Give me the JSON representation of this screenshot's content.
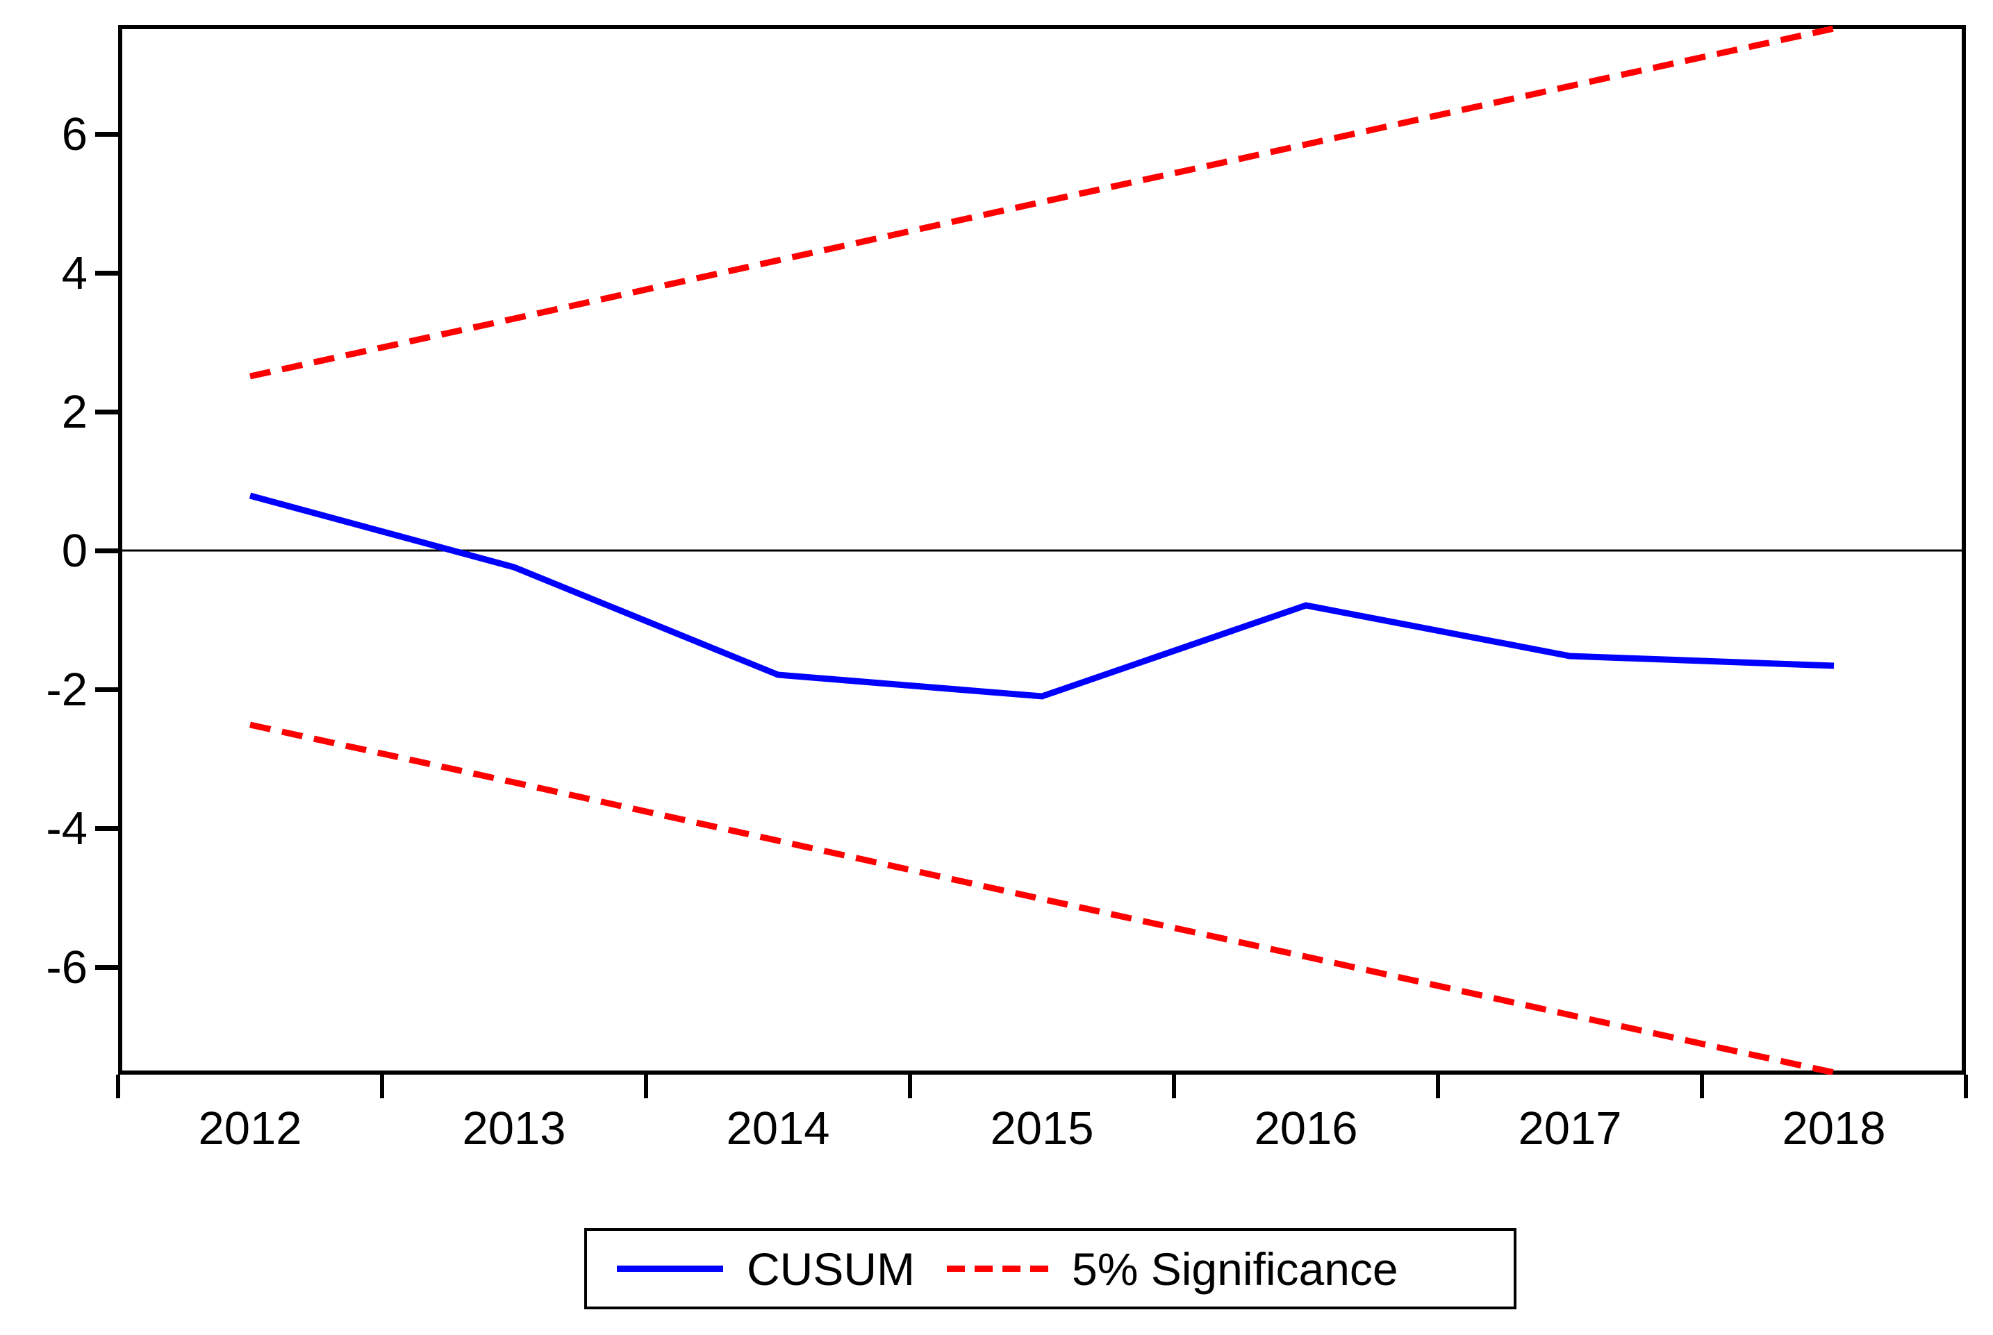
{
  "figure": {
    "background": "#ffffff",
    "axis_color": "#000000",
    "legend": {
      "items": [
        {
          "label": "CUSUM",
          "color": "#0000ff",
          "style": "solid"
        },
        {
          "label": "5% Significance",
          "color": "#ff0000",
          "style": "dashed"
        }
      ]
    }
  },
  "chart_data": {
    "type": "line",
    "title": "",
    "xlabel": "",
    "ylabel": "",
    "x": [
      2012,
      2013,
      2014,
      2015,
      2016,
      2017,
      2018
    ],
    "series": [
      {
        "name": "CUSUM",
        "color": "#0000ff",
        "style": "solid",
        "line_width": 9,
        "values": [
          0.79,
          -0.24,
          -1.79,
          -2.1,
          -0.79,
          -1.52,
          -1.66
        ]
      },
      {
        "name": "5% Significance upper bound",
        "color": "#ff0000",
        "style": "dashed",
        "line_width": 9,
        "values": [
          2.51,
          3.34,
          4.18,
          5.02,
          5.85,
          6.69,
          7.52
        ]
      },
      {
        "name": "5% Significance lower bound",
        "color": "#ff0000",
        "style": "dashed",
        "line_width": 9,
        "values": [
          -2.51,
          -3.34,
          -4.18,
          -5.02,
          -5.85,
          -6.69,
          -7.52
        ]
      }
    ],
    "xlim": [
      2011.5,
      2018.5
    ],
    "ylim": [
      -7.55,
      7.57
    ],
    "yticks": [
      6,
      4,
      2,
      0,
      -2,
      -4,
      -6
    ],
    "xticks": [
      2012,
      2013,
      2014,
      2015,
      2016,
      2017,
      2018
    ],
    "xtick_boundaries": [
      2011.5,
      2012.5,
      2013.5,
      2014.5,
      2015.5,
      2016.5,
      2017.5,
      2018.5
    ],
    "zero_line": true,
    "grid": false,
    "legend_position": "bottom-center"
  }
}
